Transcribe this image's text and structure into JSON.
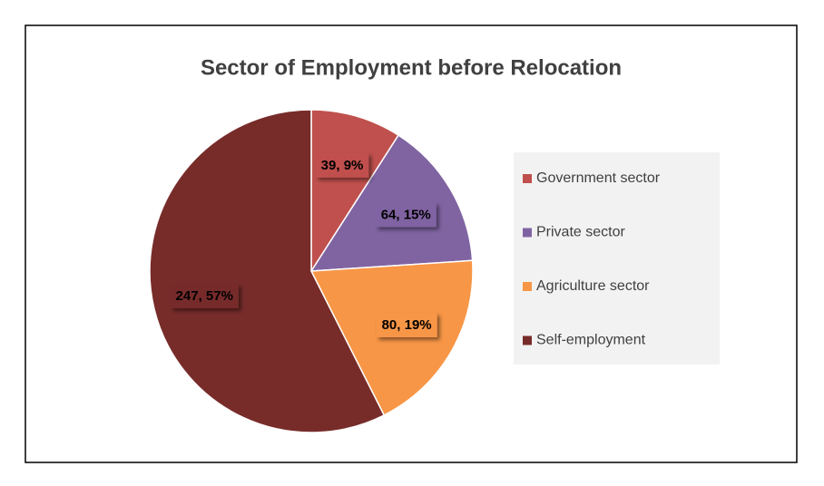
{
  "chart_data": {
    "type": "pie",
    "title": "Sector of Employment before Relocation",
    "categories": [
      "Government sector",
      "Private sector",
      "Agriculture sector",
      "Self-employment"
    ],
    "values": [
      39,
      64,
      80,
      247
    ],
    "value_labels": [
      "39, 9%",
      "64, 15%",
      "80, 19%",
      "247, 57%"
    ],
    "colors": [
      "#c0504d",
      "#8064a2",
      "#f79646",
      "#772c2a"
    ],
    "legend": "right"
  }
}
